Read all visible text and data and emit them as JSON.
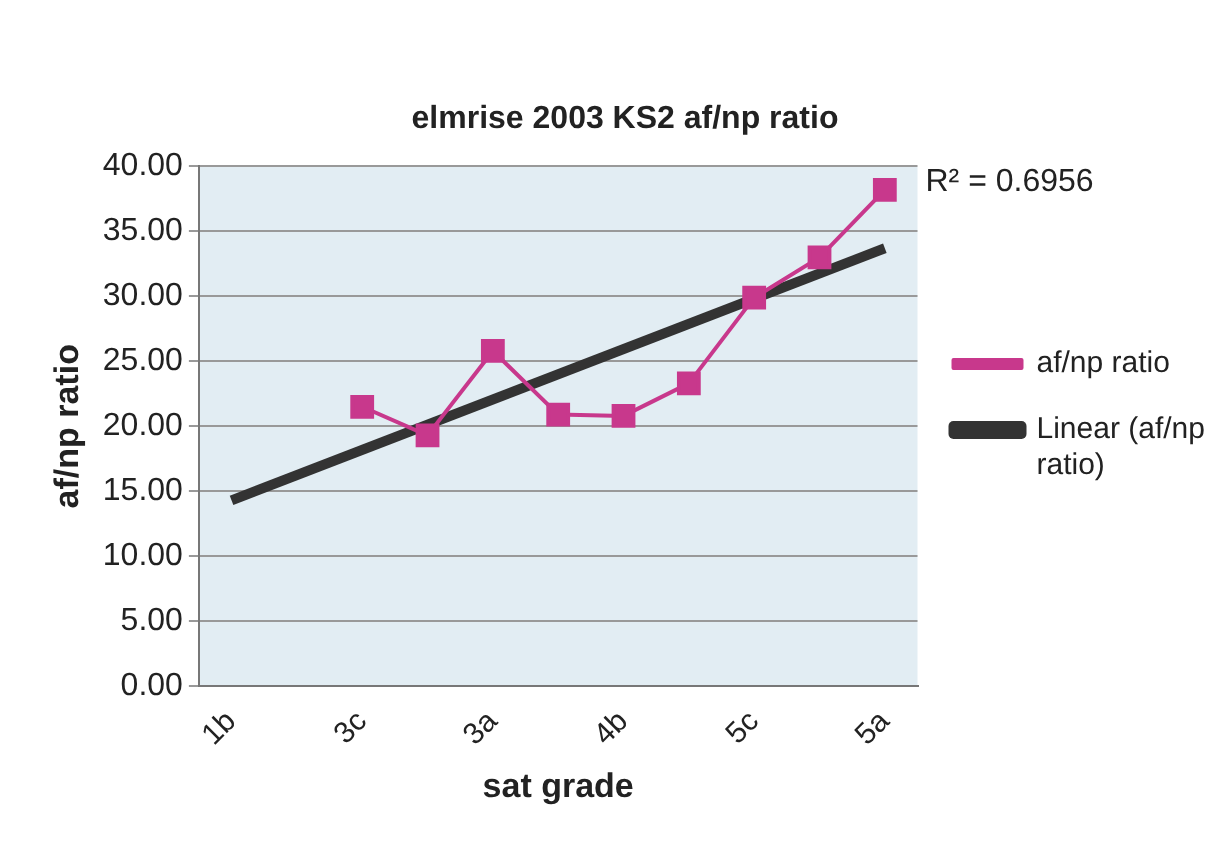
{
  "chart_data": {
    "type": "line",
    "title": "elmrise 2003 KS2 af/np ratio",
    "xlabel": "sat grade",
    "ylabel": "af/np ratio",
    "categories": [
      "1b",
      null,
      "3c",
      null,
      "3a",
      null,
      "4b",
      null,
      "5c",
      null,
      "5a"
    ],
    "series": [
      {
        "name": "af/np ratio",
        "color": "#c8388c",
        "marker": "square",
        "values": [
          null,
          null,
          21.5,
          19.3,
          25.8,
          20.9,
          20.8,
          23.3,
          29.9,
          33,
          38.2
        ]
      },
      {
        "name": "Linear (af/np ratio)",
        "color": "#333333",
        "type": "line",
        "marker": "none",
        "values": [
          14.3,
          null,
          null,
          null,
          null,
          null,
          null,
          null,
          null,
          null,
          33.7
        ]
      }
    ],
    "ylim": [
      0,
      40
    ],
    "yticks": [
      {
        "value": 0,
        "label": "0.00"
      },
      {
        "value": 5,
        "label": "5.00"
      },
      {
        "value": 10,
        "label": "10.00"
      },
      {
        "value": 15,
        "label": "15.00"
      },
      {
        "value": 20,
        "label": "20.00"
      },
      {
        "value": 25,
        "label": "25.00"
      },
      {
        "value": 30,
        "label": "30.00"
      },
      {
        "value": 35,
        "label": "35.00"
      },
      {
        "value": 40,
        "label": "40.00"
      }
    ],
    "grid": "y",
    "legend": "right",
    "annotations": [
      "R² = 0.6956"
    ]
  }
}
